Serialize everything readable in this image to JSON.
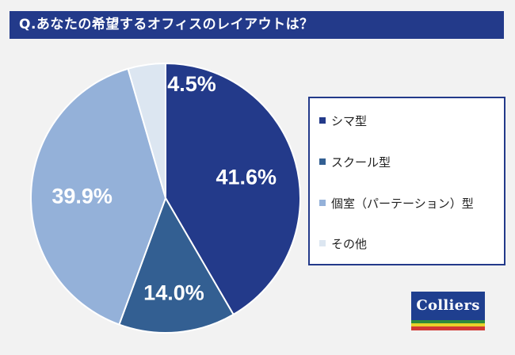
{
  "header": {
    "title": "Q.あなたの希望するオフィスのレイアウトは？"
  },
  "chart_data": {
    "type": "pie",
    "title": "",
    "slices": [
      {
        "label": "シマ型",
        "value": 41.6,
        "display": "41.6%",
        "color": "#233a8a"
      },
      {
        "label": "スクール型",
        "value": 14.0,
        "display": "14.0%",
        "color": "#335f92"
      },
      {
        "label": "個室（パーテーション）型",
        "value": 39.9,
        "display": "39.9%",
        "color": "#94b1d9"
      },
      {
        "label": "その他",
        "value": 4.5,
        "display": "4.5%",
        "color": "#dce6f1"
      }
    ],
    "start": "top, clockwise",
    "legend_placement": "right"
  },
  "logo": {
    "text": "Colliers",
    "stripe_colors": [
      "#2e8b3b",
      "#e8d22a",
      "#d13a34"
    ]
  },
  "theme": {
    "header_bg": "#233a8a",
    "page_bg": "#f2f2f2"
  }
}
